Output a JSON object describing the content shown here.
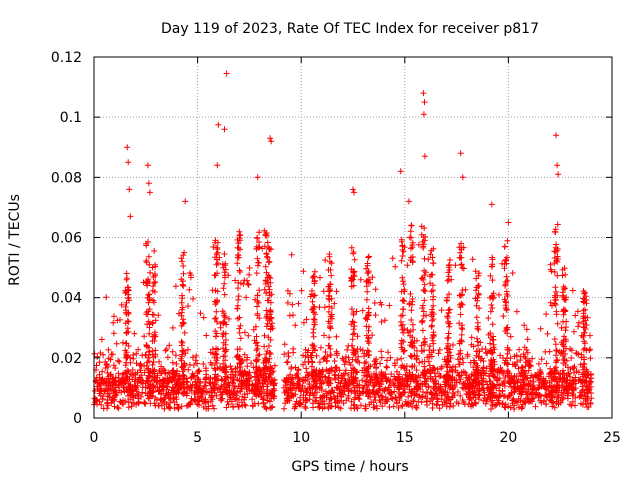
{
  "chart_data": {
    "type": "scatter",
    "title": "Day 119 of 2023, Rate Of TEC Index for receiver p817",
    "xlabel": "GPS time / hours",
    "ylabel": "ROTI / TECUs",
    "xlim": [
      0,
      25
    ],
    "ylim": [
      0,
      0.12
    ],
    "xticks": [
      0,
      5,
      10,
      15,
      20,
      25
    ],
    "xtick_labels": [
      "0",
      "5",
      "10",
      "15",
      "20",
      "25"
    ],
    "yticks": [
      0,
      0.02,
      0.04,
      0.06,
      0.08,
      0.1,
      0.12
    ],
    "ytick_labels": [
      "0",
      "0.02",
      "0.04",
      "0.06",
      "0.08",
      "0.1",
      "0.12"
    ],
    "grid": true,
    "marker": "+",
    "series_color": "#ff0000",
    "series": [
      {
        "name": "ROTI",
        "points": [
          [
            1.6,
            0.09
          ],
          [
            1.65,
            0.085
          ],
          [
            1.7,
            0.076
          ],
          [
            1.75,
            0.067
          ],
          [
            2.6,
            0.084
          ],
          [
            2.65,
            0.078
          ],
          [
            2.7,
            0.075
          ],
          [
            4.4,
            0.072
          ],
          [
            5.95,
            0.084
          ],
          [
            6.0,
            0.0975
          ],
          [
            6.3,
            0.096
          ],
          [
            6.4,
            0.1145
          ],
          [
            7.9,
            0.08
          ],
          [
            8.5,
            0.093
          ],
          [
            8.55,
            0.092
          ],
          [
            12.5,
            0.076
          ],
          [
            12.55,
            0.075
          ],
          [
            15.9,
            0.108
          ],
          [
            15.95,
            0.105
          ],
          [
            15.92,
            0.101
          ],
          [
            15.97,
            0.087
          ],
          [
            17.7,
            0.088
          ],
          [
            17.8,
            0.08
          ],
          [
            22.3,
            0.094
          ],
          [
            22.35,
            0.084
          ],
          [
            22.4,
            0.081
          ],
          [
            19.2,
            0.071
          ],
          [
            20.0,
            0.065
          ],
          [
            14.8,
            0.082
          ],
          [
            15.2,
            0.072
          ]
        ],
        "activity_profile": [
          [
            0.0,
            0.03
          ],
          [
            0.5,
            0.04
          ],
          [
            1.0,
            0.045
          ],
          [
            1.5,
            0.05
          ],
          [
            2.0,
            0.048
          ],
          [
            2.5,
            0.06
          ],
          [
            3.0,
            0.055
          ],
          [
            3.5,
            0.04
          ],
          [
            4.0,
            0.05
          ],
          [
            4.5,
            0.055
          ],
          [
            5.0,
            0.045
          ],
          [
            5.5,
            0.055
          ],
          [
            6.0,
            0.062
          ],
          [
            6.5,
            0.058
          ],
          [
            7.0,
            0.055
          ],
          [
            7.5,
            0.058
          ],
          [
            8.0,
            0.065
          ],
          [
            8.5,
            0.06
          ],
          [
            9.0,
            0.035
          ],
          [
            9.5,
            0.055
          ],
          [
            10.0,
            0.05
          ],
          [
            10.5,
            0.045
          ],
          [
            11.0,
            0.055
          ],
          [
            11.5,
            0.05
          ],
          [
            12.0,
            0.045
          ],
          [
            12.5,
            0.06
          ],
          [
            13.0,
            0.05
          ],
          [
            13.5,
            0.05
          ],
          [
            14.0,
            0.045
          ],
          [
            14.5,
            0.055
          ],
          [
            15.0,
            0.06
          ],
          [
            15.5,
            0.065
          ],
          [
            16.0,
            0.06
          ],
          [
            16.5,
            0.058
          ],
          [
            17.0,
            0.055
          ],
          [
            17.5,
            0.058
          ],
          [
            18.0,
            0.06
          ],
          [
            18.5,
            0.05
          ],
          [
            19.0,
            0.062
          ],
          [
            19.5,
            0.055
          ],
          [
            20.0,
            0.055
          ],
          [
            20.5,
            0.04
          ],
          [
            21.0,
            0.035
          ],
          [
            21.5,
            0.04
          ],
          [
            22.0,
            0.055
          ],
          [
            22.5,
            0.06
          ],
          [
            23.0,
            0.048
          ],
          [
            23.5,
            0.04
          ],
          [
            24.0,
            0.035
          ]
        ],
        "baseline_range": [
          0.003,
          0.012
        ]
      }
    ]
  }
}
